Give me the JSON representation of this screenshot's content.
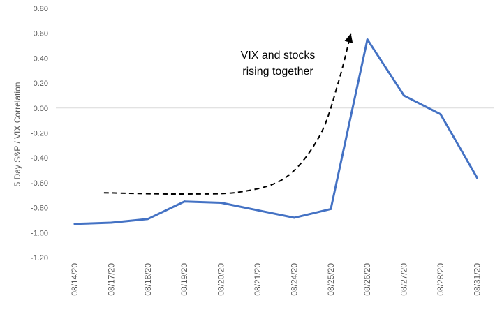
{
  "chart_data": {
    "type": "line",
    "categories": [
      "08/14/20",
      "08/17/20",
      "08/18/20",
      "08/19/20",
      "08/20/20",
      "08/21/20",
      "08/24/20",
      "08/25/20",
      "08/26/20",
      "08/27/20",
      "08/28/20",
      "08/31/20"
    ],
    "series": [
      {
        "values": [
          -0.93,
          -0.92,
          -0.89,
          -0.75,
          -0.76,
          -0.82,
          -0.88,
          -0.81,
          0.55,
          0.1,
          -0.05,
          -0.56
        ]
      }
    ],
    "ylabel": "5 Day S&P / VIX Correlation",
    "xlabel": "",
    "title": "",
    "ylim": [
      -1.2,
      0.8
    ],
    "ytick_step": 0.2,
    "ytick_labels": [
      "-1.20",
      "-1.00",
      "-0.80",
      "-0.60",
      "-0.40",
      "-0.20",
      "0.00",
      "0.20",
      "0.40",
      "0.60",
      "0.80"
    ],
    "zero_line": true,
    "grid": false,
    "annotation": {
      "lines": [
        "VIX and stocks",
        "rising together"
      ],
      "arrow_style": "dashed",
      "arrow_path": [
        {
          "x": 0.8,
          "y": -0.68
        },
        {
          "x": 3.0,
          "y": -0.69
        },
        {
          "x": 4.6,
          "y": -0.67
        },
        {
          "x": 5.8,
          "y": -0.55
        },
        {
          "x": 6.7,
          "y": -0.22
        },
        {
          "x": 7.2,
          "y": 0.2
        },
        {
          "x": 7.55,
          "y": 0.6
        }
      ]
    },
    "colors": {
      "series": "#4472C4",
      "axis": "#D9D9D9",
      "arrow": "#000000"
    }
  }
}
